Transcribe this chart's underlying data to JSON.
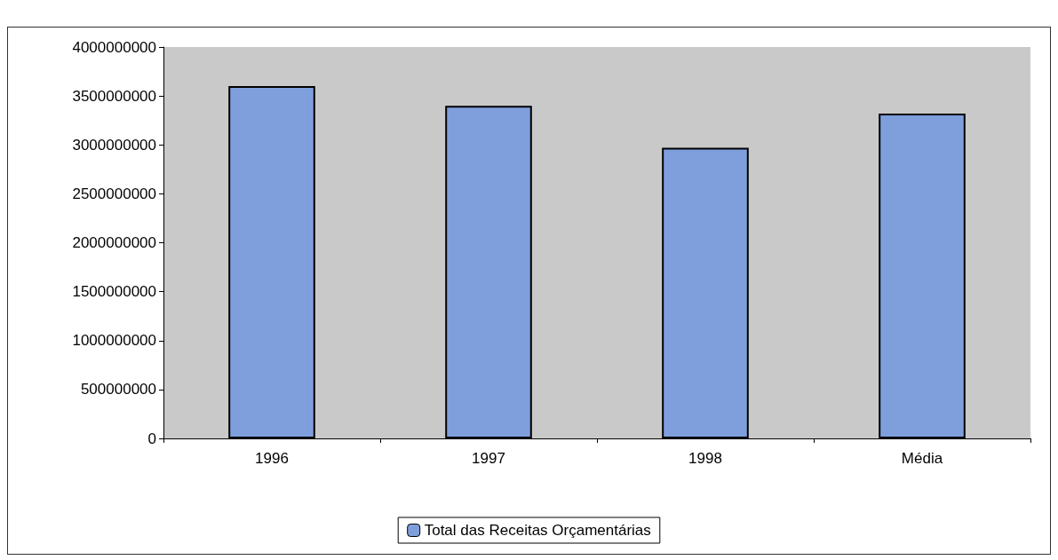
{
  "chart_data": {
    "type": "bar",
    "categories": [
      "1996",
      "1997",
      "1998",
      "Média"
    ],
    "series": [
      {
        "name": "Total das Receitas Orçamentárias",
        "color": "#7f9fdc",
        "values": [
          3600000000,
          3400000000,
          2970000000,
          3320000000
        ]
      }
    ],
    "ylim": [
      0,
      4000000000
    ],
    "yticks": [
      0,
      500000000,
      1000000000,
      1500000000,
      2000000000,
      2500000000,
      3000000000,
      3500000000,
      4000000000
    ],
    "grid": false,
    "legend": "bottom"
  }
}
